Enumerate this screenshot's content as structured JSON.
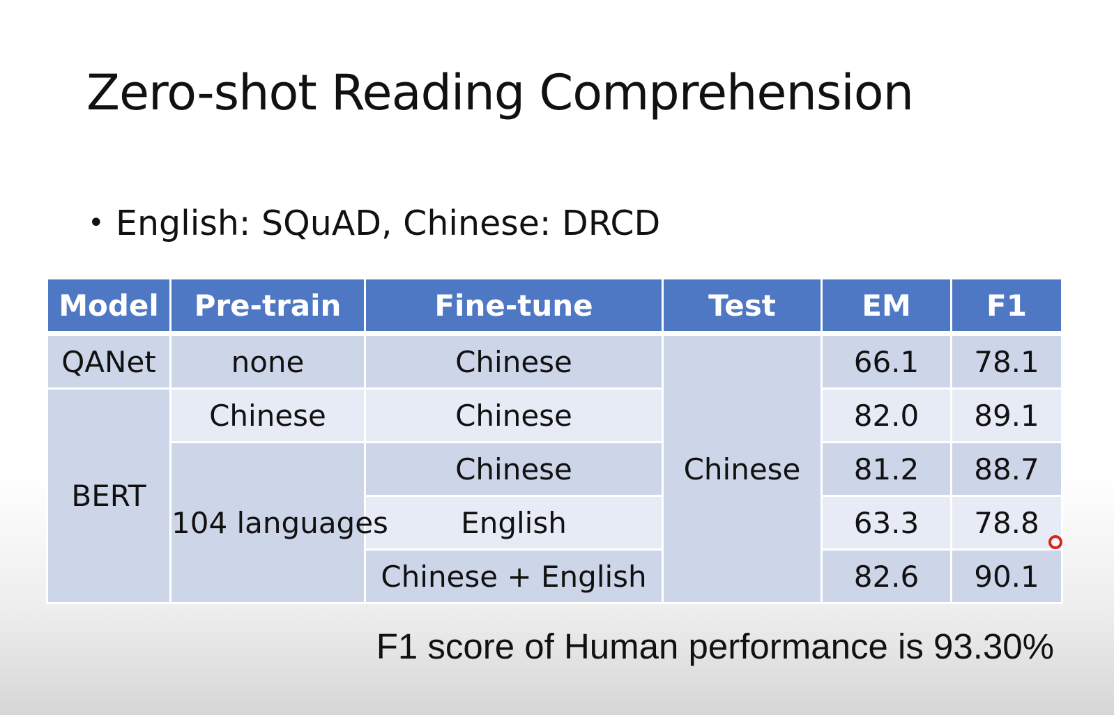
{
  "title": "Zero-shot Reading Comprehension",
  "bullet": {
    "symbol": "•",
    "text": "English: SQuAD, Chinese: DRCD"
  },
  "table": {
    "columns": [
      "Model",
      "Pre-train",
      "Fine-tune",
      "Test",
      "EM",
      "F1"
    ],
    "rows": [
      {
        "model": "QANet",
        "pretrain": "none",
        "finetune": "Chinese",
        "test": "Chinese",
        "em": "66.1",
        "f1": "78.1"
      },
      {
        "model": "BERT",
        "pretrain": "Chinese",
        "finetune": "Chinese",
        "test": "Chinese",
        "em": "82.0",
        "f1": "89.1"
      },
      {
        "model": "BERT",
        "pretrain": "104 languages",
        "finetune": "Chinese",
        "test": "Chinese",
        "em": "81.2",
        "f1": "88.7"
      },
      {
        "model": "BERT",
        "pretrain": "104 languages",
        "finetune": "English",
        "test": "Chinese",
        "em": "63.3",
        "f1": "78.8"
      },
      {
        "model": "BERT",
        "pretrain": "104 languages",
        "finetune": "Chinese + English",
        "test": "Chinese",
        "em": "82.6",
        "f1": "90.1"
      }
    ],
    "header_color": "#4f78c4",
    "row_dark_color": "#cdd5e8",
    "row_light_color": "#e7ebf5"
  },
  "footnote": "F1 score of Human performance is 93.30%",
  "pointer_color": "#d9261c"
}
